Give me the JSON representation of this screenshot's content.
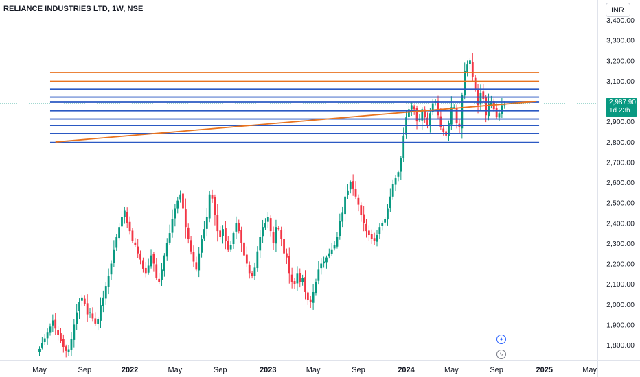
{
  "header": {
    "title": "RELIANCE INDUSTRIES LTD, 1W, NSE"
  },
  "currency": "INR",
  "last_price": {
    "value": "2,987.90",
    "countdown": "1d 23h",
    "color": "#089981"
  },
  "chart_data": {
    "type": "candlestick",
    "y_ticks": [
      "1,800.00",
      "1,900.00",
      "2,000.00",
      "2,100.00",
      "2,200.00",
      "2,300.00",
      "2,400.00",
      "2,500.00",
      "2,600.00",
      "2,700.00",
      "2,800.00",
      "2,900.00",
      "3,000.00",
      "3,100.00",
      "3,200.00",
      "3,300.00",
      "3,400.00"
    ],
    "x_ticks": [
      {
        "label": "May",
        "bold": false,
        "idx": 0
      },
      {
        "label": "Sep",
        "bold": false,
        "idx": 17
      },
      {
        "label": "2022",
        "bold": true,
        "idx": 34
      },
      {
        "label": "May",
        "bold": false,
        "idx": 51
      },
      {
        "label": "Sep",
        "bold": false,
        "idx": 68
      },
      {
        "label": "2023",
        "bold": true,
        "idx": 86
      },
      {
        "label": "May",
        "bold": false,
        "idx": 103
      },
      {
        "label": "Sep",
        "bold": false,
        "idx": 120
      },
      {
        "label": "2024",
        "bold": true,
        "idx": 138
      },
      {
        "label": "May",
        "bold": false,
        "idx": 155
      },
      {
        "label": "Sep",
        "bold": false,
        "idx": 172
      },
      {
        "label": "2025",
        "bold": true,
        "idx": 190
      },
      {
        "label": "May",
        "bold": false,
        "idx": 207
      }
    ],
    "ylim": [
      1740,
      3440
    ],
    "up_color": "#089981",
    "down_color": "#f23645",
    "horizontal_levels": [
      {
        "price": 3140,
        "color": "#e8731f"
      },
      {
        "price": 3098,
        "color": "#e8731f"
      },
      {
        "price": 3058,
        "color": "#2b59c3"
      },
      {
        "price": 3020,
        "color": "#2b59c3"
      },
      {
        "price": 2995,
        "color": "#2b59c3"
      },
      {
        "price": 2952,
        "color": "#2b59c3"
      },
      {
        "price": 2912,
        "color": "#2b59c3"
      },
      {
        "price": 2880,
        "color": "#2b59c3"
      },
      {
        "price": 2840,
        "color": "#2b59c3"
      },
      {
        "price": 2797,
        "color": "#2b59c3"
      }
    ],
    "trendline": {
      "from": {
        "idx": 6,
        "price": 2799
      },
      "to": {
        "idx": 187,
        "price": 2999
      },
      "color": "#e8731f"
    },
    "closes": [
      1780,
      1810,
      1832,
      1860,
      1890,
      1920,
      1880,
      1850,
      1820,
      1790,
      1770,
      1778,
      1830,
      1900,
      1960,
      2010,
      2030,
      2000,
      1950,
      1960,
      1930,
      1905,
      1925,
      1995,
      2030,
      2090,
      2140,
      2200,
      2270,
      2330,
      2380,
      2430,
      2460,
      2400,
      2360,
      2310,
      2290,
      2250,
      2220,
      2175,
      2150,
      2190,
      2240,
      2200,
      2130,
      2110,
      2170,
      2240,
      2300,
      2350,
      2420,
      2470,
      2510,
      2540,
      2470,
      2380,
      2320,
      2260,
      2210,
      2170,
      2250,
      2320,
      2370,
      2430,
      2540,
      2520,
      2440,
      2360,
      2330,
      2370,
      2310,
      2270,
      2290,
      2350,
      2400,
      2360,
      2300,
      2240,
      2200,
      2150,
      2140,
      2180,
      2260,
      2330,
      2380,
      2400,
      2430,
      2360,
      2300,
      2380,
      2370,
      2320,
      2250,
      2230,
      2150,
      2110,
      2100,
      2150,
      2110,
      2130,
      2060,
      2020,
      2010,
      2060,
      2110,
      2170,
      2200,
      2210,
      2230,
      2250,
      2270,
      2290,
      2330,
      2410,
      2450,
      2530,
      2560,
      2600,
      2570,
      2530,
      2490,
      2440,
      2400,
      2360,
      2340,
      2320,
      2310,
      2340,
      2380,
      2400,
      2420,
      2470,
      2530,
      2590,
      2620,
      2650,
      2720,
      2830,
      2920,
      2960,
      2980,
      2960,
      2900,
      2910,
      2960,
      2920,
      2880,
      2940,
      2990,
      3000,
      2930,
      2870,
      2850,
      2830,
      2890,
      2970,
      2970,
      2890,
      2870,
      3030,
      3150,
      3180,
      3200,
      3120,
      3060,
      2980,
      3040,
      3010,
      2930,
      2990,
      3000,
      2960,
      2920,
      2940,
      2980,
      2988
    ]
  }
}
